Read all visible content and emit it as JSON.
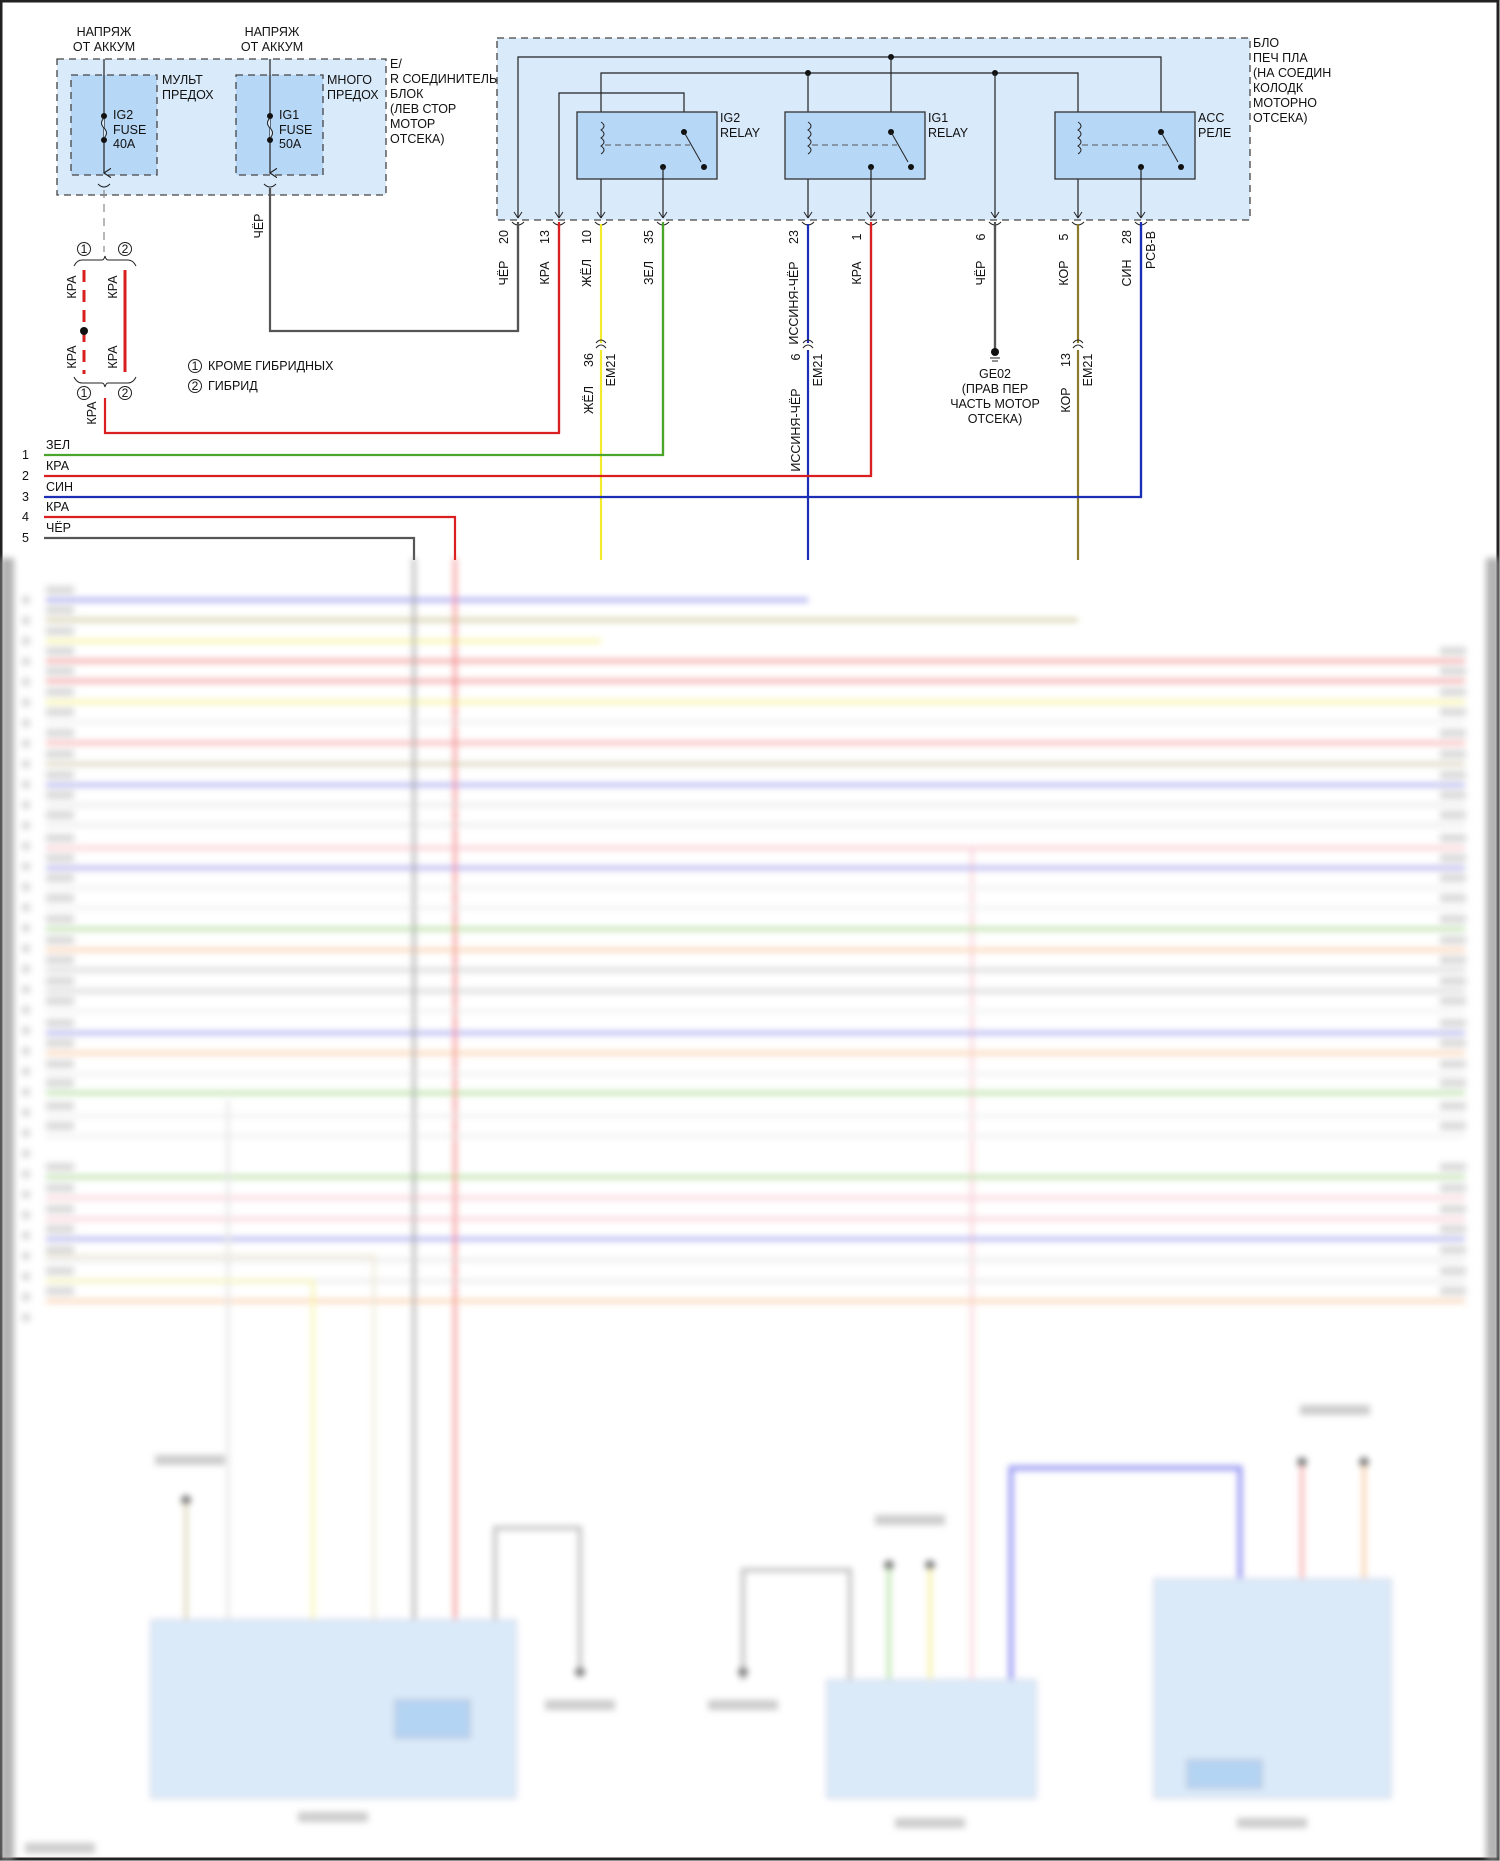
{
  "left_block": {
    "supply": [
      [
        "НАПРЯЖ",
        "ОТ АККУМ"
      ],
      [
        "НАПРЯЖ",
        "ОТ АККУМ"
      ]
    ],
    "fuse_boxes": [
      {
        "label": [
          "МУЛЬТ",
          "ПРЕДОХ"
        ],
        "fuse": [
          "IG2",
          "FUSE",
          "40A"
        ]
      },
      {
        "label": [
          "МНОГО",
          "ПРЕДОХ"
        ],
        "fuse": [
          "IG1",
          "FUSE",
          "50A"
        ]
      }
    ],
    "title": [
      "E/",
      "R СОЕДИНИТЕЛЬ",
      "БЛОК",
      "(ЛЕВ СТОР",
      "МОТОР",
      "ОТСЕКА)"
    ],
    "output_wire": "ЧЁР"
  },
  "variants": {
    "markers": [
      "1",
      "2"
    ],
    "wire_labels": [
      "КРА",
      "КРА",
      "КРА",
      "КРА"
    ],
    "bottom_wire": "КРА",
    "legend": [
      {
        "marker": "1",
        "text": "КРОМЕ ГИБРИДНЫХ"
      },
      {
        "marker": "2",
        "text": "ГИБРИД"
      }
    ]
  },
  "relay_block": {
    "title": [
      "БЛО",
      "ПЕЧ ПЛА",
      "(НА СОЕДИН",
      "КОЛОДК",
      "МОТОРНО",
      "ОТСЕКА)"
    ],
    "relays": [
      {
        "name": [
          "IG2",
          "RELAY"
        ]
      },
      {
        "name": [
          "IG1",
          "RELAY"
        ]
      },
      {
        "name": [
          "ACC",
          "РЕЛЕ"
        ]
      }
    ],
    "pins": [
      {
        "pin": "20",
        "color": "ЧЁР",
        "hex": "#555555"
      },
      {
        "pin": "13",
        "color": "КРА",
        "hex": "#d91f1f"
      },
      {
        "pin": "10",
        "color": "ЖЁЛ",
        "hex": "#f2ea2a"
      },
      {
        "pin": "35",
        "color": "ЗЕЛ",
        "hex": "#4aa52a"
      },
      {
        "pin": "23",
        "color": "ИССИНЯ-ЧЁР",
        "hex": "#1b2fb5"
      },
      {
        "pin": "1",
        "color": "КРА",
        "hex": "#d91f1f"
      },
      {
        "pin": "6",
        "color": "ЧЁР",
        "hex": "#555555"
      },
      {
        "pin": "5",
        "color": "КОР",
        "hex": "#8a7a2a"
      },
      {
        "pin": "28",
        "color": "СИН",
        "hex": "#1b2fb5",
        "extra": "РСВ-В"
      }
    ]
  },
  "em21": [
    {
      "pin": "36",
      "connector": "EM21",
      "color": "ЖЁЛ"
    },
    {
      "pin": "6",
      "connector": "EM21",
      "color": "ИССИНЯ-ЧЁР"
    },
    {
      "pin": "13",
      "connector": "EM21",
      "color": "КОР"
    }
  ],
  "ground": {
    "id": "GE02",
    "desc": [
      "(ПРАВ ПЕР",
      "ЧАСТЬ МОТОР",
      "ОТСЕКА)"
    ]
  },
  "rows": [
    {
      "num": "1",
      "color": "ЗЕЛ",
      "hex": "#4aa52a"
    },
    {
      "num": "2",
      "color": "КРА",
      "hex": "#d91f1f"
    },
    {
      "num": "3",
      "color": "СИН",
      "hex": "#1b2fb5"
    },
    {
      "num": "4",
      "color": "КРА",
      "hex": "#d91f1f"
    },
    {
      "num": "5",
      "color": "ЧЁР",
      "hex": "#555555"
    }
  ]
}
